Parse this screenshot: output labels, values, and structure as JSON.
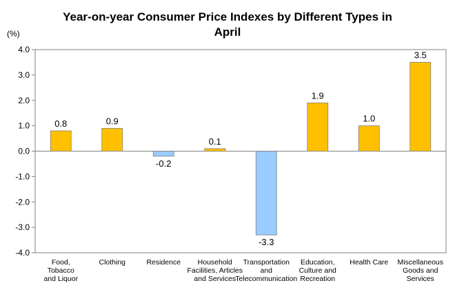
{
  "chart_data": {
    "type": "bar",
    "title_lines": [
      "Year-on-year Consumer Price Indexes by Different Types in",
      "April"
    ],
    "y_unit": "(%)",
    "categories": [
      [
        "Food,",
        "Tobacco",
        "and Liquor"
      ],
      [
        "Clothing"
      ],
      [
        "Residence"
      ],
      [
        "Household",
        "Facilities, Articles",
        "and Services"
      ],
      [
        "Transportation",
        "and",
        "Telecommunication"
      ],
      [
        "Education,",
        "Culture and",
        "Recreation"
      ],
      [
        "Health Care"
      ],
      [
        "Miscellaneous",
        "Goods and",
        "Services"
      ]
    ],
    "values": [
      0.8,
      0.9,
      -0.2,
      0.1,
      -3.3,
      1.9,
      1.0,
      3.5
    ],
    "ylim": [
      -4.0,
      4.0
    ],
    "yticks": [
      4.0,
      3.0,
      2.0,
      1.0,
      0.0,
      -1.0,
      -2.0,
      -3.0,
      -4.0
    ],
    "grid": false,
    "colors": {
      "positive": "#FFC000",
      "negative": "#99CCFF",
      "stroke": "#808080"
    }
  }
}
